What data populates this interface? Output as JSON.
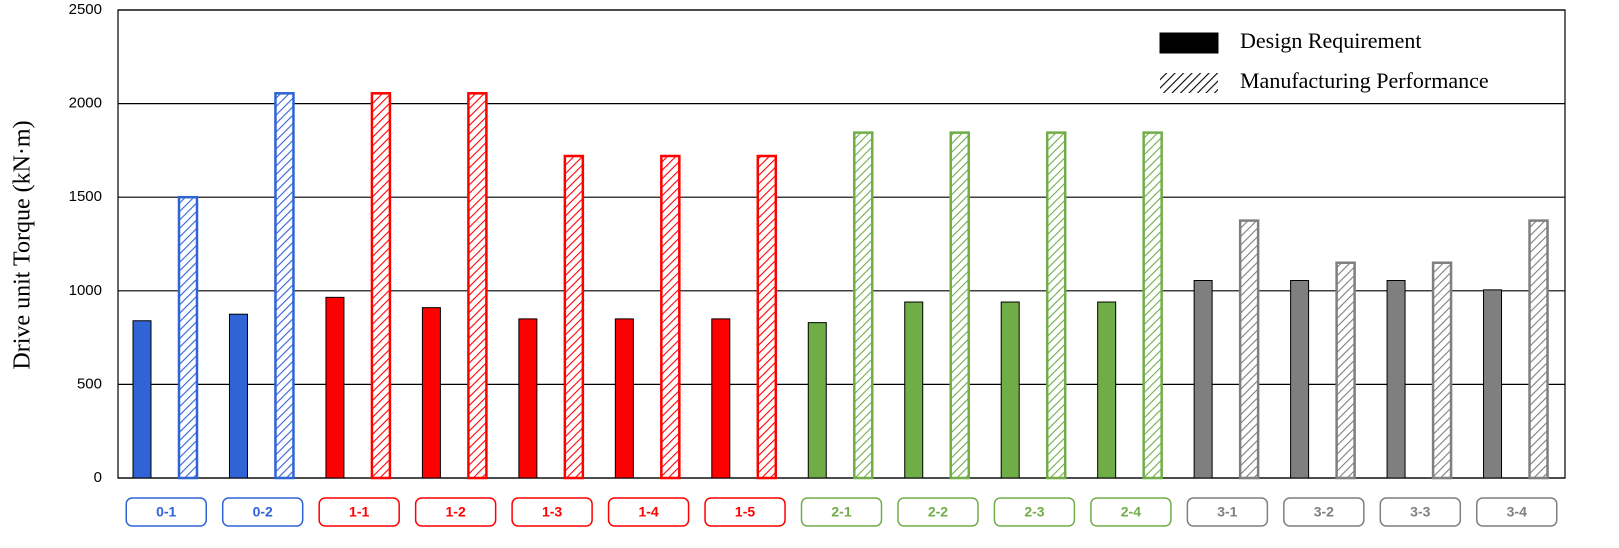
{
  "chart_data": {
    "type": "bar",
    "y_label": "Drive unit Torque (kN·m)",
    "categories": [
      "0-1",
      "0-2",
      "1-1",
      "1-2",
      "1-3",
      "1-4",
      "1-5",
      "2-1",
      "2-2",
      "2-3",
      "2-4",
      "3-1",
      "3-2",
      "3-3",
      "3-4"
    ],
    "category_colors": [
      "#2f63d6",
      "#2f63d6",
      "#ff0000",
      "#ff0000",
      "#ff0000",
      "#ff0000",
      "#ff0000",
      "#70ad47",
      "#70ad47",
      "#70ad47",
      "#70ad47",
      "#7f7f7f",
      "#7f7f7f",
      "#7f7f7f",
      "#7f7f7f"
    ],
    "series": [
      {
        "name": "Design Requirement",
        "color": "#000000",
        "hatched": false,
        "values": [
          840,
          875,
          965,
          910,
          850,
          850,
          850,
          830,
          940,
          940,
          940,
          1055,
          1055,
          1055,
          1005
        ]
      },
      {
        "name": "Manufacturing Performance",
        "color": "#000000",
        "hatched": true,
        "values": [
          1500,
          2055,
          2055,
          2055,
          1720,
          1720,
          1720,
          1845,
          1845,
          1845,
          1845,
          1375,
          1150,
          1150,
          1375
        ]
      }
    ],
    "ylim": [
      0,
      2500
    ],
    "yticks": [
      0,
      500,
      1000,
      1500,
      2000,
      2500
    ],
    "grid": true,
    "legend": "upper right"
  }
}
